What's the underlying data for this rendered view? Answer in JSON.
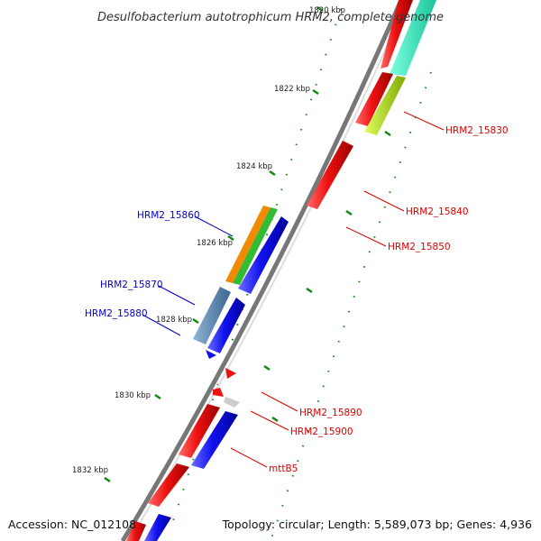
{
  "title": "Desulfobacterium autotrophicum HRM2, complete genome",
  "footer": {
    "accession": "Accession: NC_012108",
    "summary": "Topology: circular; Length: 5,589,073 bp; Genes: 4,936"
  },
  "ticks": [
    "1820 kbp",
    "1822 kbp",
    "1824 kbp",
    "1826 kbp",
    "1828 kbp",
    "1830 kbp",
    "1832 kbp"
  ],
  "labels": [
    {
      "text": "HRM2_15830",
      "color": "#dd0000"
    },
    {
      "text": "HRM2_15840",
      "color": "#dd0000"
    },
    {
      "text": "HRM2_15850",
      "color": "#dd0000"
    },
    {
      "text": "HRM2_15860",
      "color": "#0000cc"
    },
    {
      "text": "HRM2_15870",
      "color": "#0000cc"
    },
    {
      "text": "HRM2_15880",
      "color": "#0000cc"
    },
    {
      "text": "HRM2_15890",
      "color": "#dd0000"
    },
    {
      "text": "HRM2_15900",
      "color": "#dd0000"
    },
    {
      "text": "mttB5",
      "color": "#dd0000"
    }
  ],
  "colors": {
    "forward_strand": "#ee1111",
    "reverse_strand": "#1111ee",
    "backbone": "#888888",
    "tick_marks": "#118811"
  }
}
